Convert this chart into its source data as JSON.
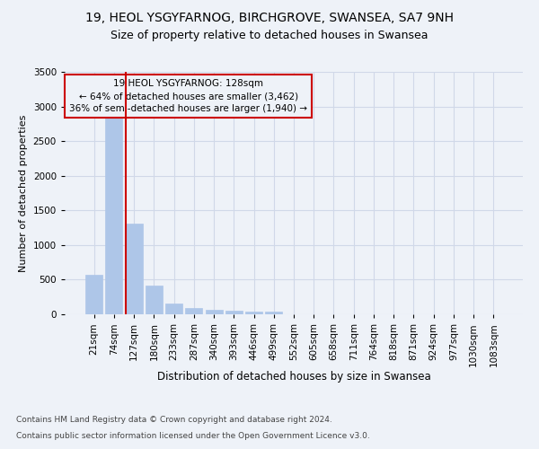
{
  "title1": "19, HEOL YSGYFARNOG, BIRCHGROVE, SWANSEA, SA7 9NH",
  "title2": "Size of property relative to detached houses in Swansea",
  "xlabel": "Distribution of detached houses by size in Swansea",
  "ylabel": "Number of detached properties",
  "footnote1": "Contains HM Land Registry data © Crown copyright and database right 2024.",
  "footnote2": "Contains public sector information licensed under the Open Government Licence v3.0.",
  "categories": [
    "21sqm",
    "74sqm",
    "127sqm",
    "180sqm",
    "233sqm",
    "287sqm",
    "340sqm",
    "393sqm",
    "446sqm",
    "499sqm",
    "552sqm",
    "605sqm",
    "658sqm",
    "711sqm",
    "764sqm",
    "818sqm",
    "871sqm",
    "924sqm",
    "977sqm",
    "1030sqm",
    "1083sqm"
  ],
  "bar_values": [
    570,
    2900,
    1310,
    410,
    155,
    90,
    65,
    55,
    45,
    40,
    0,
    0,
    0,
    0,
    0,
    0,
    0,
    0,
    0,
    0,
    0
  ],
  "bar_color": "#aec6e8",
  "bar_edge_color": "#aec6e8",
  "grid_color": "#d0d8e8",
  "background_color": "#eef2f8",
  "property_line_index": 2,
  "annotation_text": "19 HEOL YSGYFARNOG: 128sqm\n← 64% of detached houses are smaller (3,462)\n36% of semi-detached houses are larger (1,940) →",
  "annotation_box_color": "#cc0000",
  "ylim": [
    0,
    3500
  ],
  "yticks": [
    0,
    500,
    1000,
    1500,
    2000,
    2500,
    3000,
    3500
  ],
  "title1_fontsize": 10,
  "title2_fontsize": 9,
  "xlabel_fontsize": 8.5,
  "ylabel_fontsize": 8,
  "tick_fontsize": 7.5,
  "footnote_fontsize": 6.5
}
